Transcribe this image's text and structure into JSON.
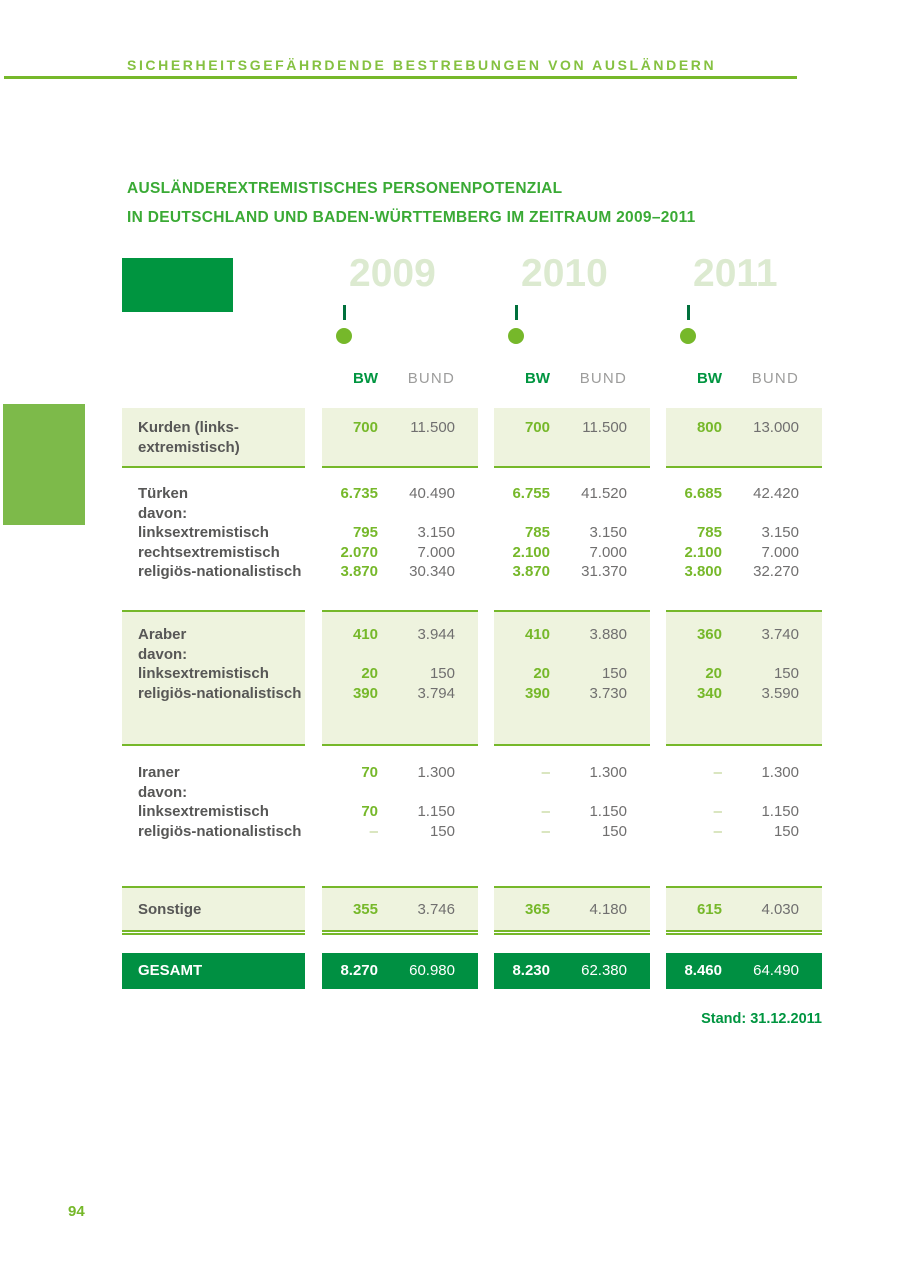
{
  "page": {
    "running_header": "SICHERHEITSGEFÄHRDENDE BESTREBUNGEN VON AUSLÄNDERN",
    "title_line1": "AUSLÄNDEREXTREMISTISCHES PERSONENPOTENZIAL",
    "title_line2": "IN DEUTSCHLAND UND BADEN-WÜRTTEMBERG IM ZEITRAUM 2009–2011",
    "stand_note": "Stand: 31.12.2011",
    "page_number": "94"
  },
  "colors": {
    "accent_green": "#76b82a",
    "dark_green": "#009540",
    "title_green": "#3aaa35",
    "pale_green_bg": "#eef3de",
    "pale_year_text": "#dcead0",
    "value_gray": "#706f6f",
    "label_gray": "#575756",
    "bund_header_gray": "#9d9d9c"
  },
  "table": {
    "years": [
      "2009",
      "2010",
      "2011"
    ],
    "col_headers": [
      "BW",
      "BUND"
    ],
    "sections": [
      {
        "name": "Kurden",
        "rows": [
          {
            "label": "Kurden (links-\nextremistisch)",
            "v": [
              "700",
              "11.500",
              "700",
              "11.500",
              "800",
              "13.000"
            ]
          }
        ]
      },
      {
        "name": "Türken",
        "rows": [
          {
            "label": "Türken",
            "v": [
              "6.735",
              "40.490",
              "6.755",
              "41.520",
              "6.685",
              "42.420"
            ]
          },
          {
            "label": "davon:"
          },
          {
            "label": "linksextremistisch",
            "v": [
              "795",
              "3.150",
              "785",
              "3.150",
              "785",
              "3.150"
            ]
          },
          {
            "label": "rechtsextremistisch",
            "v": [
              "2.070",
              "7.000",
              "2.100",
              "7.000",
              "2.100",
              "7.000"
            ]
          },
          {
            "label": "religiös-nationalistisch",
            "v": [
              "3.870",
              "30.340",
              "3.870",
              "31.370",
              "3.800",
              "32.270"
            ]
          }
        ]
      },
      {
        "name": "Araber",
        "rows": [
          {
            "label": "Araber",
            "v": [
              "410",
              "3.944",
              "410",
              "3.880",
              "360",
              "3.740"
            ]
          },
          {
            "label": "davon:"
          },
          {
            "label": "linksextremistisch",
            "v": [
              "20",
              "150",
              "20",
              "150",
              "20",
              "150"
            ]
          },
          {
            "label": "religiös-nationalistisch",
            "v": [
              "390",
              "3.794",
              "390",
              "3.730",
              "340",
              "3.590"
            ]
          }
        ]
      },
      {
        "name": "Iraner",
        "rows": [
          {
            "label": "Iraner",
            "v": [
              "70",
              "1.300",
              "–",
              "1.300",
              "–",
              "1.300"
            ]
          },
          {
            "label": "davon:"
          },
          {
            "label": "linksextremistisch",
            "v": [
              "70",
              "1.150",
              "–",
              "1.150",
              "–",
              "1.150"
            ]
          },
          {
            "label": "religiös-nationalistisch",
            "v": [
              "–",
              "150",
              "–",
              "150",
              "–",
              "150"
            ]
          }
        ]
      },
      {
        "name": "Sonstige",
        "rows": [
          {
            "label": "Sonstige",
            "v": [
              "355",
              "3.746",
              "365",
              "4.180",
              "615",
              "4.030"
            ]
          }
        ]
      },
      {
        "name": "GESAMT",
        "rows": [
          {
            "label": "GESAMT",
            "v": [
              "8.270",
              "60.980",
              "8.230",
              "62.380",
              "8.460",
              "64.490"
            ]
          }
        ]
      }
    ]
  }
}
